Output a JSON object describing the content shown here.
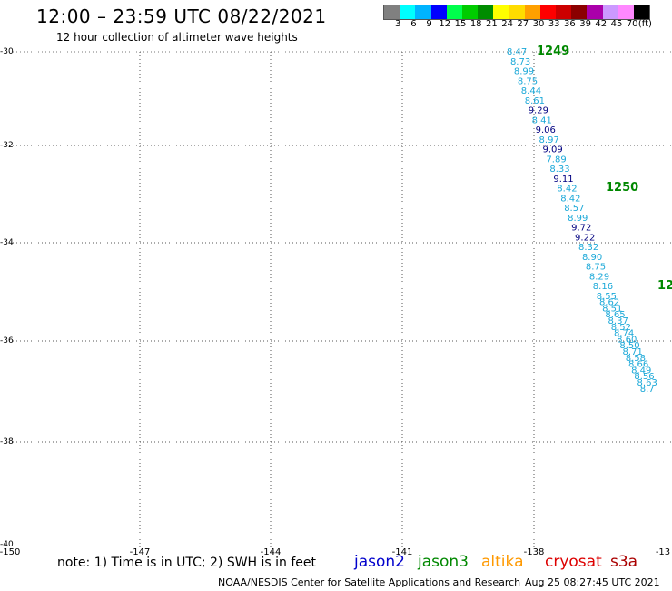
{
  "header": {
    "title": "12:00 – 23:59 UTC 08/22/2021",
    "subtitle": "12 hour collection of altimeter wave heights"
  },
  "colorbar": {
    "colors": [
      "#808080",
      "#00ffff",
      "#00b4ff",
      "#0000ff",
      "#00ff4c",
      "#00cc00",
      "#008c00",
      "#ffff00",
      "#ffdc00",
      "#ffa000",
      "#ff0000",
      "#cc0000",
      "#8b0000",
      "#aa00aa",
      "#cc99ff",
      "#ff88ff",
      "#000000"
    ],
    "labels": [
      "3",
      "6",
      "9",
      "12",
      "15",
      "18",
      "21",
      "24",
      "27",
      "30",
      "33",
      "36",
      "39",
      "42",
      "45",
      "70",
      "(ft)"
    ]
  },
  "axes": {
    "lat_labels": [
      "-30",
      "-32",
      "-34",
      "-36",
      "-38",
      "-40"
    ],
    "lon_labels": [
      "-150",
      "-147",
      "-144",
      "-141",
      "-138",
      "-13"
    ]
  },
  "tracks": [
    {
      "label": "1249",
      "label_color": "#008800"
    },
    {
      "label": "1250",
      "label_color": "#008800"
    },
    {
      "label": "12",
      "label_color": "#008800"
    }
  ],
  "readings": {
    "values": [
      "8.47",
      "8.73",
      "8.99",
      "8.75",
      "8.44",
      "8.61",
      "9.29",
      "8.41",
      "9.06",
      "8.97",
      "9.09",
      "7.89",
      "8.33",
      "9.11",
      "8.42",
      "8.42",
      "8.57",
      "8.99",
      "9.72",
      "9.22",
      "8.32",
      "8.90",
      "8.75",
      "8.29",
      "8.16",
      "8.55",
      "8.62",
      "8.51",
      "8.65",
      "8.37",
      "8.52",
      "8.74",
      "8.60",
      "8.50",
      "8.71",
      "8.58",
      "8.66",
      "8.49",
      "8.56",
      "8.63",
      "8.7"
    ],
    "colors": [
      "#1aa8d8",
      "#1aa8d8",
      "#1aa8d8",
      "#1aa8d8",
      "#1aa8d8",
      "#1aa8d8",
      "#000080",
      "#1aa8d8",
      "#000080",
      "#1aa8d8",
      "#000080",
      "#1aa8d8",
      "#1aa8d8",
      "#000080",
      "#1aa8d8",
      "#1aa8d8",
      "#1aa8d8",
      "#1aa8d8",
      "#000080",
      "#000080",
      "#1aa8d8",
      "#1aa8d8",
      "#1aa8d8",
      "#1aa8d8",
      "#1aa8d8",
      "#1aa8d8",
      "#1aa8d8",
      "#1aa8d8",
      "#1aa8d8",
      "#1aa8d8",
      "#1aa8d8",
      "#1aa8d8",
      "#1aa8d8",
      "#1aa8d8",
      "#1aa8d8",
      "#1aa8d8",
      "#1aa8d8",
      "#1aa8d8",
      "#1aa8d8",
      "#1aa8d8",
      "#1aa8d8"
    ]
  },
  "footer": {
    "note": "note: 1) Time is in UTC; 2) SWH is in feet",
    "satellites": [
      {
        "name": "jason2",
        "color": "#0000cc"
      },
      {
        "name": "jason3",
        "color": "#008800"
      },
      {
        "name": "altika",
        "color": "#ff9900"
      },
      {
        "name": "cryosat",
        "color": "#dd0000"
      },
      {
        "name": "s3a",
        "color": "#aa0000"
      }
    ],
    "credit": "NOAA/NESDIS Center for Satellite Applications and Research",
    "timestamp": "Aug 25 08:27:45 UTC 2021"
  }
}
